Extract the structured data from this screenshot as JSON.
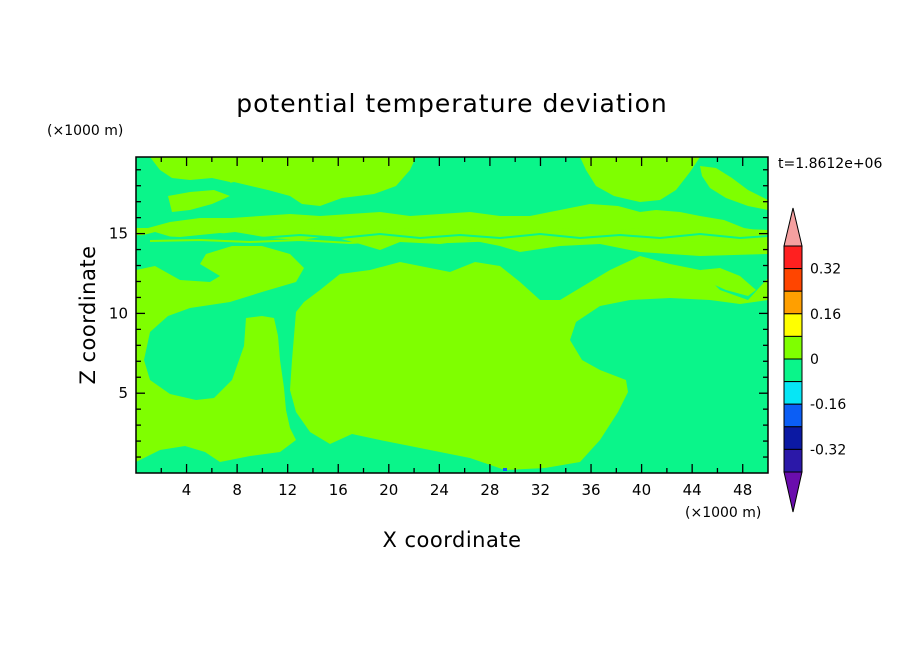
{
  "chart_data": {
    "type": "heatmap",
    "title": "potential temperature deviation",
    "xlabel": "X coordinate",
    "ylabel": "Z coordinate",
    "x_unit": "(×1000 m)",
    "y_unit": "(×1000 m)",
    "time_label": "t=1.8612e+06",
    "xlim": [
      0,
      50
    ],
    "ylim": [
      0,
      19.8
    ],
    "x_ticks": [
      4,
      8,
      12,
      16,
      20,
      24,
      28,
      32,
      36,
      40,
      44,
      48
    ],
    "y_ticks": [
      5,
      10,
      15
    ],
    "colorbar": {
      "levels": [
        -0.4,
        -0.32,
        -0.24,
        -0.16,
        -0.08,
        0,
        0.08,
        0.16,
        0.24,
        0.32,
        0.4
      ],
      "colors": [
        "#6a0dad",
        "#2b18a8",
        "#0b19a3",
        "#0b5ef5",
        "#06e6f5",
        "#0af58a",
        "#7fff00",
        "#ffff00",
        "#ff9f00",
        "#ff4500",
        "#ff2020",
        "#f5a0a0"
      ],
      "labels": [
        "0.32",
        "0.16",
        "0",
        "-0.16",
        "-0.32"
      ],
      "label_values": [
        0.32,
        0.16,
        0,
        -0.16,
        -0.32
      ]
    },
    "background_value_color": "#7fff00",
    "regions_near_zero_negative": "#0af58a",
    "colors": {
      "positive_small": "#7fff00",
      "negative_small": "#0af58a"
    }
  }
}
